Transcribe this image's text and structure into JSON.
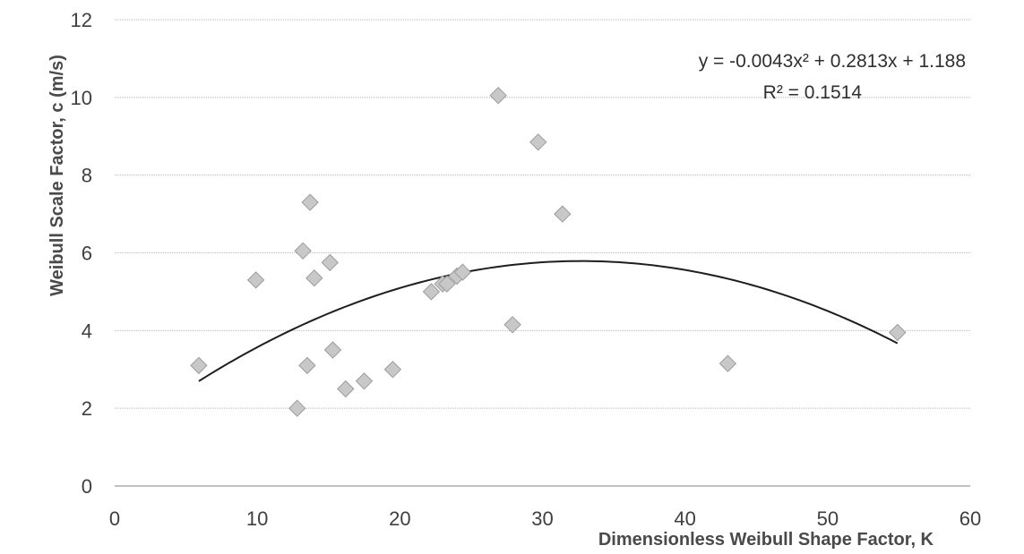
{
  "chart_data": {
    "type": "scatter",
    "title": "",
    "xlabel": "Dimensionless Weibull Shape Factor, K",
    "ylabel": "Weibull Scale Factor, c (m/s)",
    "xlim": [
      0,
      60
    ],
    "ylim": [
      0,
      12
    ],
    "x_ticks": [
      0,
      10,
      20,
      30,
      40,
      50,
      60
    ],
    "y_ticks": [
      0,
      2,
      4,
      6,
      8,
      10,
      12
    ],
    "grid": "horizontal",
    "legend": "none",
    "marker": "diamond",
    "marker_color": "#c8c8c8",
    "series": [
      {
        "points": [
          {
            "x": 5.9,
            "y": 3.1
          },
          {
            "x": 9.9,
            "y": 5.3
          },
          {
            "x": 12.8,
            "y": 2.0
          },
          {
            "x": 13.2,
            "y": 6.05
          },
          {
            "x": 13.5,
            "y": 3.1
          },
          {
            "x": 13.7,
            "y": 7.3
          },
          {
            "x": 14.0,
            "y": 5.35
          },
          {
            "x": 15.1,
            "y": 5.75
          },
          {
            "x": 15.3,
            "y": 3.5
          },
          {
            "x": 16.2,
            "y": 2.5
          },
          {
            "x": 17.5,
            "y": 2.7
          },
          {
            "x": 19.5,
            "y": 3.0
          },
          {
            "x": 22.2,
            "y": 5.0
          },
          {
            "x": 23.0,
            "y": 5.2
          },
          {
            "x": 23.3,
            "y": 5.2
          },
          {
            "x": 24.0,
            "y": 5.4
          },
          {
            "x": 24.4,
            "y": 5.5
          },
          {
            "x": 26.9,
            "y": 10.05
          },
          {
            "x": 27.9,
            "y": 4.15
          },
          {
            "x": 29.7,
            "y": 8.85
          },
          {
            "x": 31.4,
            "y": 7.0
          },
          {
            "x": 43.0,
            "y": 3.15
          },
          {
            "x": 54.9,
            "y": 3.95
          }
        ]
      }
    ],
    "trendline": {
      "type": "polynomial",
      "coefficients": {
        "a": -0.0043,
        "b": 0.2813,
        "c": 1.188
      },
      "x_range": [
        5.9,
        54.9
      ]
    },
    "annotations": {
      "equation": "y = -0.0043x² + 0.2813x + 1.188",
      "r_squared": "R² = 0.1514"
    }
  }
}
